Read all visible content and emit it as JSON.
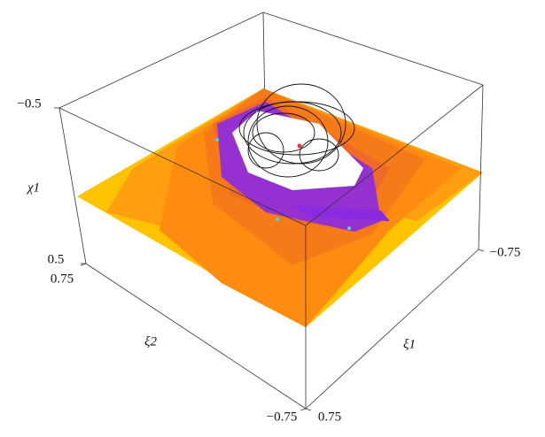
{
  "chart_data": {
    "type": "surface3d",
    "xlabel": "ξ1",
    "ylabel": "ξ2",
    "zlabel": "χ1",
    "xlim": [
      0.75,
      -0.75
    ],
    "xticks": [
      {
        "value": -0.75,
        "label": "−0.75"
      },
      {
        "value": 0.75,
        "label": "0.75"
      }
    ],
    "ylim": [
      0.75,
      -0.75
    ],
    "yticks": [
      {
        "value": 0.75,
        "label": "0.75"
      },
      {
        "value": -0.75,
        "label": "−0.75"
      }
    ],
    "zlim": [
      -0.5,
      0.5
    ],
    "zticks": [
      {
        "value": -0.5,
        "label": "−0.5"
      },
      {
        "value": 0.5,
        "label": "0.5"
      }
    ]
  }
}
